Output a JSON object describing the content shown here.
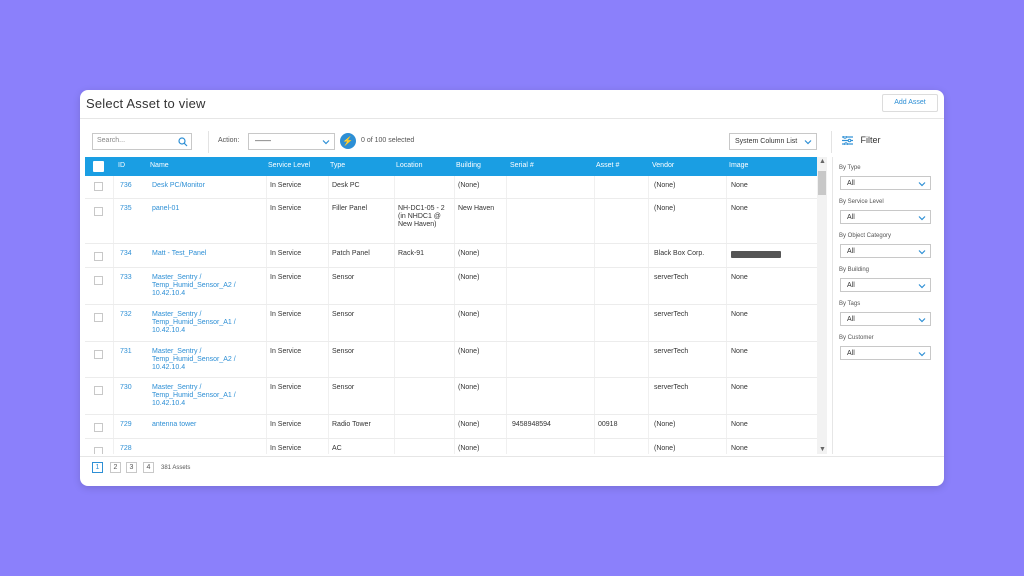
{
  "page": {
    "title": "Select Asset to view",
    "add_asset_label": "Add Asset"
  },
  "toolbar": {
    "search_placeholder": "Search...",
    "action_label": "Action:",
    "action_value": "——",
    "selected_text": "0 of 100 selected",
    "system_column_list": "System Column List",
    "filter_label": "Filter"
  },
  "table": {
    "headers": [
      "ID",
      "Name",
      "Service Level",
      "Type",
      "Location",
      "Building",
      "Serial #",
      "Asset #",
      "Vendor",
      "Image"
    ],
    "rows": [
      {
        "id": "736",
        "name": "Desk PC/Monitor",
        "service": "In Service",
        "type": "Desk PC",
        "location": "",
        "building": "(None)",
        "serial": "",
        "asset": "",
        "vendor": "(None)",
        "image": "None"
      },
      {
        "id": "735",
        "name": "panel-01",
        "service": "In Service",
        "type": "Filler Panel",
        "location": "NH-DC1-05 - 2 (in NHDC1 @ New Haven)",
        "building": "New Haven",
        "serial": "",
        "asset": "",
        "vendor": "(None)",
        "image": "None"
      },
      {
        "id": "734",
        "name": "Matt - Test_Panel",
        "service": "In Service",
        "type": "Patch Panel",
        "location": "Rack-91",
        "building": "(None)",
        "serial": "",
        "asset": "",
        "vendor": "Black Box Corp.",
        "image": ""
      },
      {
        "id": "733",
        "name": "Master_Sentry / Temp_Humid_Sensor_A2 / 10.42.10.4",
        "service": "In Service",
        "type": "Sensor",
        "location": "",
        "building": "(None)",
        "serial": "",
        "asset": "",
        "vendor": "serverTech",
        "image": "None"
      },
      {
        "id": "732",
        "name": "Master_Sentry / Temp_Humid_Sensor_A1 / 10.42.10.4",
        "service": "In Service",
        "type": "Sensor",
        "location": "",
        "building": "(None)",
        "serial": "",
        "asset": "",
        "vendor": "serverTech",
        "image": "None"
      },
      {
        "id": "731",
        "name": "Master_Sentry / Temp_Humid_Sensor_A2 / 10.42.10.4",
        "service": "In Service",
        "type": "Sensor",
        "location": "",
        "building": "(None)",
        "serial": "",
        "asset": "",
        "vendor": "serverTech",
        "image": "None"
      },
      {
        "id": "730",
        "name": "Master_Sentry / Temp_Humid_Sensor_A1 / 10.42.10.4",
        "service": "In Service",
        "type": "Sensor",
        "location": "",
        "building": "(None)",
        "serial": "",
        "asset": "",
        "vendor": "serverTech",
        "image": "None"
      },
      {
        "id": "729",
        "name": "antenna tower",
        "service": "In Service",
        "type": "Radio Tower",
        "location": "",
        "building": "(None)",
        "serial": "9458948594",
        "asset": "00918",
        "vendor": "(None)",
        "image": "None"
      },
      {
        "id": "728",
        "name": "",
        "service": "In Service",
        "type": "AC",
        "location": "",
        "building": "(None)",
        "serial": "",
        "asset": "",
        "vendor": "(None)",
        "image": "None"
      }
    ]
  },
  "filters": [
    {
      "label": "By Type",
      "value": "All"
    },
    {
      "label": "By Service Level",
      "value": "All"
    },
    {
      "label": "By Object Category",
      "value": "All"
    },
    {
      "label": "By Building",
      "value": "All"
    },
    {
      "label": "By Tags",
      "value": "All"
    },
    {
      "label": "By Customer",
      "value": "All"
    }
  ],
  "pagination": {
    "pages": [
      "1",
      "2",
      "3",
      "4"
    ],
    "active_page": "1",
    "asset_count": "381 Assets"
  },
  "colors": {
    "background": "#8b80fb",
    "accent": "#1a9ee3",
    "link": "#2d8fd5"
  }
}
